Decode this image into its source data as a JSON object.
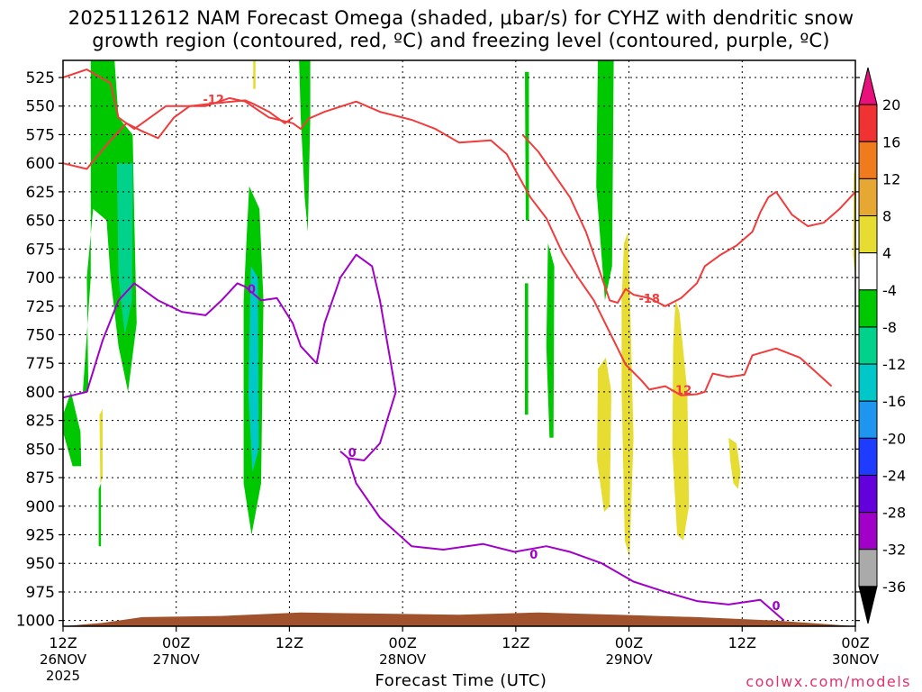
{
  "title": {
    "line1": "2025112612 NAM Forecast Omega (shaded, μbar/s) for CYHZ with dendritic snow",
    "line2": "growth region (contoured, red, ºC) and freezing level (contoured, purple, ºC)"
  },
  "credit": "coolwx.com/models",
  "chart_data": {
    "type": "heatmap",
    "xlabel": "Forecast Time (UTC)",
    "x_ticks": [
      {
        "label": "12Z",
        "sub": "26NOV",
        "sub2": "2025"
      },
      {
        "label": "00Z",
        "sub": "27NOV"
      },
      {
        "label": "12Z",
        "sub": ""
      },
      {
        "label": "00Z",
        "sub": "28NOV"
      },
      {
        "label": "12Z",
        "sub": ""
      },
      {
        "label": "00Z",
        "sub": "29NOV"
      },
      {
        "label": "12Z",
        "sub": ""
      },
      {
        "label": "00Z",
        "sub": "30NOV"
      }
    ],
    "x_range_hours": [
      0,
      84
    ],
    "y_ticks": [
      525,
      550,
      575,
      600,
      625,
      650,
      675,
      700,
      725,
      750,
      775,
      800,
      825,
      850,
      875,
      900,
      925,
      950,
      975,
      1000
    ],
    "y_range_hpa": [
      510,
      1005
    ],
    "colorbar": {
      "labels": [
        "20",
        "16",
        "12",
        "8",
        "4",
        "-4",
        "-8",
        "-12",
        "-16",
        "-20",
        "-24",
        "-28",
        "-32",
        "-36"
      ],
      "colors": [
        "#e8107a",
        "#f03232",
        "#f07a1e",
        "#e6a832",
        "#e6dc32",
        "#ffffff",
        "#00c800",
        "#00d28c",
        "#00c8c8",
        "#1e96f0",
        "#1e3cff",
        "#6400dc",
        "#a000c8",
        "#aaaaaa",
        "#000000"
      ]
    },
    "contour_labels": {
      "red": [
        "-12",
        "-18",
        "-12"
      ],
      "purple": [
        "0",
        "0",
        "0",
        "0"
      ]
    },
    "colors": {
      "dgz_contour": "#f03c3c",
      "freezing_contour": "#a000c8",
      "terrain": "#a0522d",
      "positive_omega": "#e6dc32",
      "negative_omega": "#00c800"
    },
    "series": [
      {
        "contour": "dgz_red_upper",
        "points": [
          [
            0,
            525
          ],
          [
            3,
            518
          ],
          [
            6,
            530
          ],
          [
            7,
            560
          ],
          [
            9,
            570
          ],
          [
            13,
            550
          ],
          [
            18,
            550
          ],
          [
            21,
            543
          ],
          [
            23,
            546
          ],
          [
            26,
            560
          ],
          [
            29,
            565
          ],
          [
            30,
            570
          ],
          [
            31,
            561
          ],
          [
            33,
            555
          ],
          [
            37,
            546
          ],
          [
            40,
            555
          ],
          [
            44,
            562
          ],
          [
            47,
            570
          ],
          [
            50,
            582
          ],
          [
            54,
            580
          ],
          [
            56,
            592
          ],
          [
            57,
            605
          ],
          [
            59,
            630
          ],
          [
            61,
            648
          ],
          [
            63,
            678
          ],
          [
            65,
            700
          ],
          [
            67,
            720
          ],
          [
            69,
            748
          ],
          [
            71,
            776
          ],
          [
            73,
            790
          ],
          [
            74,
            798
          ],
          [
            76,
            795
          ],
          [
            78,
            803
          ],
          [
            80,
            802
          ],
          [
            81,
            800
          ],
          [
            82,
            784
          ],
          [
            84,
            787
          ],
          [
            86,
            785
          ],
          [
            87,
            768
          ],
          [
            90,
            762
          ],
          [
            93,
            770
          ],
          [
            97,
            795
          ]
        ]
      },
      {
        "contour": "dgz_red_lower",
        "points": [
          [
            0,
            600
          ],
          [
            3,
            605
          ],
          [
            6,
            580
          ],
          [
            8,
            565
          ],
          [
            10,
            572
          ],
          [
            12,
            578
          ],
          [
            14,
            560
          ],
          [
            16,
            550
          ],
          [
            20,
            547
          ],
          [
            23,
            545
          ],
          [
            24,
            548
          ],
          [
            26,
            555
          ],
          [
            28,
            565
          ],
          [
            29,
            560
          ]
        ]
      },
      {
        "contour": "dgz_red_right",
        "points": [
          [
            58,
            575
          ],
          [
            60,
            590
          ],
          [
            62,
            610
          ],
          [
            64,
            630
          ],
          [
            66,
            660
          ],
          [
            68,
            700
          ],
          [
            69,
            720
          ],
          [
            70,
            722
          ],
          [
            71,
            710
          ],
          [
            72,
            715
          ],
          [
            74,
            718
          ],
          [
            76,
            725
          ],
          [
            78,
            718
          ],
          [
            80,
            705
          ],
          [
            81,
            690
          ],
          [
            83,
            680
          ],
          [
            85,
            672
          ],
          [
            87,
            660
          ],
          [
            88,
            643
          ],
          [
            89,
            630
          ],
          [
            90,
            625
          ],
          [
            92,
            645
          ],
          [
            94,
            655
          ],
          [
            96,
            652
          ],
          [
            98,
            640
          ],
          [
            100,
            625
          ]
        ]
      },
      {
        "contour": "freezing_purple",
        "points": [
          [
            0,
            805
          ],
          [
            3,
            800
          ],
          [
            5,
            755
          ],
          [
            7,
            720
          ],
          [
            9,
            705
          ],
          [
            12,
            720
          ],
          [
            15,
            730
          ],
          [
            18,
            733
          ],
          [
            20,
            720
          ],
          [
            22,
            705
          ],
          [
            23,
            708
          ],
          [
            25,
            720
          ],
          [
            27,
            718
          ],
          [
            29,
            740
          ],
          [
            30,
            760
          ],
          [
            32,
            775
          ],
          [
            33,
            740
          ],
          [
            35,
            700
          ],
          [
            37,
            680
          ],
          [
            39,
            690
          ],
          [
            40,
            720
          ],
          [
            41,
            760
          ],
          [
            42,
            800
          ],
          [
            40,
            845
          ],
          [
            38,
            860
          ],
          [
            36,
            858
          ],
          [
            35,
            852
          ]
        ]
      },
      {
        "contour": "freezing_purple_lower",
        "points": [
          [
            36,
            858
          ],
          [
            37,
            880
          ],
          [
            40,
            910
          ],
          [
            44,
            935
          ],
          [
            48,
            938
          ],
          [
            53,
            933
          ],
          [
            57,
            940
          ],
          [
            61,
            935
          ],
          [
            64,
            940
          ],
          [
            68,
            950
          ],
          [
            72,
            966
          ],
          [
            76,
            975
          ],
          [
            80,
            983
          ],
          [
            84,
            986
          ],
          [
            88,
            982
          ],
          [
            91,
            1000
          ]
        ]
      },
      {
        "contour": "terrain_surface",
        "points": [
          [
            0,
            1005
          ],
          [
            5,
            1002
          ],
          [
            10,
            997
          ],
          [
            20,
            996
          ],
          [
            30,
            993
          ],
          [
            40,
            994
          ],
          [
            50,
            995
          ],
          [
            60,
            993
          ],
          [
            70,
            995
          ],
          [
            80,
            997
          ],
          [
            90,
            1000
          ],
          [
            100,
            1005
          ]
        ]
      }
    ]
  }
}
